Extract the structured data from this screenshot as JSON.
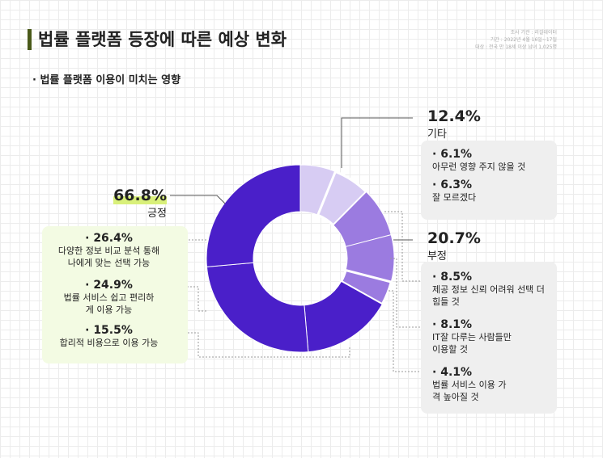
{
  "title": "법률 플랫폼 등장에 따른 예상 변화",
  "subtitle": "· 법률 플랫폼 이용이 미치는 영향",
  "meta": [
    "조사 기관 : 리걸데이터",
    "기간 : 2022년 4월 16일~17일",
    "대상 : 전국 만 18세 이상 남녀 1,025명"
  ],
  "colors": {
    "positive": "#4a1fc9",
    "negative": "#9b7be0",
    "other": "#d7ccf3",
    "highlight": "#d9f07a"
  },
  "chart_data": {
    "type": "pie",
    "donut": true,
    "groups": [
      {
        "name": "긍정",
        "value": "66.8%",
        "items": [
          {
            "value": "26.4%",
            "label": "다양한 정보 비교 분석 통해 나에게 맞는 선택 가능"
          },
          {
            "value": "24.9%",
            "label": "법률 서비스 쉽고 편리하게 이용 가능"
          },
          {
            "value": "15.5%",
            "label": "합리적 비용으로 이용 가능"
          }
        ]
      },
      {
        "name": "부정",
        "value": "20.7%",
        "items": [
          {
            "value": "8.5%",
            "label": "제공 정보 신뢰 어려워 선택 더 힘들 것"
          },
          {
            "value": "8.1%",
            "label": "IT잘 다루는 사람들만 이용할 것"
          },
          {
            "value": "4.1%",
            "label": "법률 서비스 이용 가격 높아질 것"
          }
        ]
      },
      {
        "name": "기타",
        "value": "12.4%",
        "items": [
          {
            "value": "6.1%",
            "label": "아무런 영향 주지 않을 것"
          },
          {
            "value": "6.3%",
            "label": "잘 모르겠다"
          }
        ]
      }
    ],
    "slices_clockwise_from_top": [
      6.1,
      6.3,
      8.5,
      8.1,
      4.1,
      15.5,
      24.9,
      26.4
    ]
  }
}
